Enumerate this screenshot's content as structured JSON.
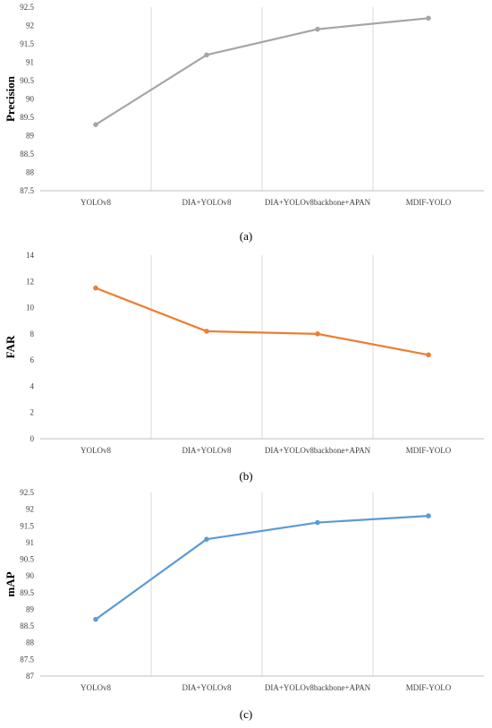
{
  "chart_data": [
    {
      "type": "line",
      "ylabel": "Precision",
      "categories": [
        "YOLOv8",
        "DIA+YOLOv8",
        "DIA+YOLOv8backbone+APAN",
        "MDIF-YOLO"
      ],
      "series": [
        {
          "values": [
            89.3,
            91.2,
            91.9,
            92.2
          ],
          "color": "#a5a5a5"
        }
      ],
      "ylim": [
        87.5,
        92.5
      ],
      "yticks": [
        "87.5",
        "88",
        "88.5",
        "89",
        "89.5",
        "90",
        "90.5",
        "91",
        "91.5",
        "92",
        "92.5"
      ],
      "grid": "vertical",
      "caption": "(a)"
    },
    {
      "type": "line",
      "ylabel": "FAR",
      "categories": [
        "YOLOv8",
        "DIA+YOLOv8",
        "DIA+YOLOv8backbone+APAN",
        "MDIF-YOLO"
      ],
      "series": [
        {
          "values": [
            11.5,
            8.2,
            8.0,
            6.4
          ],
          "color": "#ed7d31"
        }
      ],
      "ylim": [
        0,
        14
      ],
      "yticks": [
        "0",
        "2",
        "4",
        "6",
        "8",
        "10",
        "12",
        "14"
      ],
      "grid": "vertical",
      "caption": "(b)"
    },
    {
      "type": "line",
      "ylabel": "mAP",
      "categories": [
        "YOLOv8",
        "DIA+YOLOv8",
        "DIA+YOLOv8backbone+APAN",
        "MDIF-YOLO"
      ],
      "series": [
        {
          "values": [
            88.7,
            91.1,
            91.6,
            91.8
          ],
          "color": "#5b9bd5"
        }
      ],
      "ylim": [
        87,
        92.5
      ],
      "yticks": [
        "87",
        "87.5",
        "88",
        "88.5",
        "89",
        "89.5",
        "90",
        "90.5",
        "91",
        "91.5",
        "92",
        "92.5"
      ],
      "grid": "vertical",
      "caption": "(c)"
    }
  ]
}
